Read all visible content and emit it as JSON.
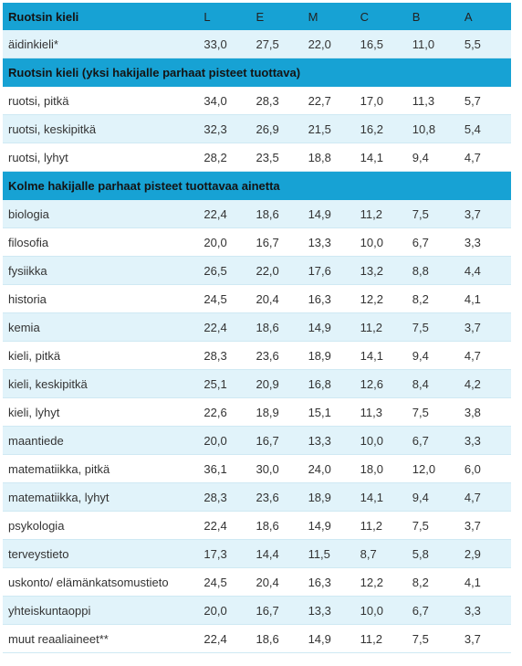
{
  "columns": [
    "L",
    "E",
    "M",
    "C",
    "B",
    "A"
  ],
  "sections": [
    {
      "title": "Ruotsin kieli",
      "show_columns": true,
      "rows": [
        {
          "subject": "äidinkieli*",
          "values": [
            "33,0",
            "27,5",
            "22,0",
            "16,5",
            "11,0",
            "5,5"
          ]
        }
      ]
    },
    {
      "title": "Ruotsin kieli (yksi hakijalle parhaat pisteet tuottava)",
      "show_columns": false,
      "rows": [
        {
          "subject": "ruotsi, pitkä",
          "values": [
            "34,0",
            "28,3",
            "22,7",
            "17,0",
            "11,3",
            "5,7"
          ]
        },
        {
          "subject": "ruotsi, keskipitkä",
          "values": [
            "32,3",
            "26,9",
            "21,5",
            "16,2",
            "10,8",
            "5,4"
          ]
        },
        {
          "subject": "ruotsi, lyhyt",
          "values": [
            "28,2",
            "23,5",
            "18,8",
            "14,1",
            "9,4",
            "4,7"
          ]
        }
      ]
    },
    {
      "title": "Kolme hakijalle parhaat pisteet tuottavaa ainetta",
      "show_columns": false,
      "rows": [
        {
          "subject": "biologia",
          "values": [
            "22,4",
            "18,6",
            "14,9",
            "11,2",
            "7,5",
            "3,7"
          ]
        },
        {
          "subject": "filosofia",
          "values": [
            "20,0",
            "16,7",
            "13,3",
            "10,0",
            "6,7",
            "3,3"
          ]
        },
        {
          "subject": "fysiikka",
          "values": [
            "26,5",
            "22,0",
            "17,6",
            "13,2",
            "8,8",
            "4,4"
          ]
        },
        {
          "subject": "historia",
          "values": [
            "24,5",
            "20,4",
            "16,3",
            "12,2",
            "8,2",
            "4,1"
          ]
        },
        {
          "subject": "kemia",
          "values": [
            "22,4",
            "18,6",
            "14,9",
            "11,2",
            "7,5",
            "3,7"
          ]
        },
        {
          "subject": "kieli, pitkä",
          "values": [
            "28,3",
            "23,6",
            "18,9",
            "14,1",
            "9,4",
            "4,7"
          ]
        },
        {
          "subject": "kieli, keskipitkä",
          "values": [
            "25,1",
            "20,9",
            "16,8",
            "12,6",
            "8,4",
            "4,2"
          ]
        },
        {
          "subject": "kieli, lyhyt",
          "values": [
            "22,6",
            "18,9",
            "15,1",
            "11,3",
            "7,5",
            "3,8"
          ]
        },
        {
          "subject": "maantiede",
          "values": [
            "20,0",
            "16,7",
            "13,3",
            "10,0",
            "6,7",
            "3,3"
          ]
        },
        {
          "subject": "matematiikka, pitkä",
          "values": [
            "36,1",
            "30,0",
            "24,0",
            "18,0",
            "12,0",
            "6,0"
          ]
        },
        {
          "subject": "matematiikka, lyhyt",
          "values": [
            "28,3",
            "23,6",
            "18,9",
            "14,1",
            "9,4",
            "4,7"
          ]
        },
        {
          "subject": "psykologia",
          "values": [
            "22,4",
            "18,6",
            "14,9",
            "11,2",
            "7,5",
            "3,7"
          ]
        },
        {
          "subject": "terveystieto",
          "values": [
            "17,3",
            "14,4",
            "11,5",
            "8,7",
            "5,8",
            "2,9"
          ]
        },
        {
          "subject": "uskonto/ elämänkatsomustieto",
          "values": [
            "24,5",
            "20,4",
            "16,3",
            "12,2",
            "8,2",
            "4,1"
          ]
        },
        {
          "subject": "yhteiskuntaoppi",
          "values": [
            "20,0",
            "16,7",
            "13,3",
            "10,0",
            "6,7",
            "3,3"
          ]
        },
        {
          "subject": "muut reaaliaineet**",
          "values": [
            "22,4",
            "18,6",
            "14,9",
            "11,2",
            "7,5",
            "3,7"
          ]
        }
      ]
    }
  ],
  "colors": {
    "header_bg": "#17a2d4",
    "row_alt_bg": "#e1f3fa",
    "row_plain_bg": "#ffffff"
  }
}
